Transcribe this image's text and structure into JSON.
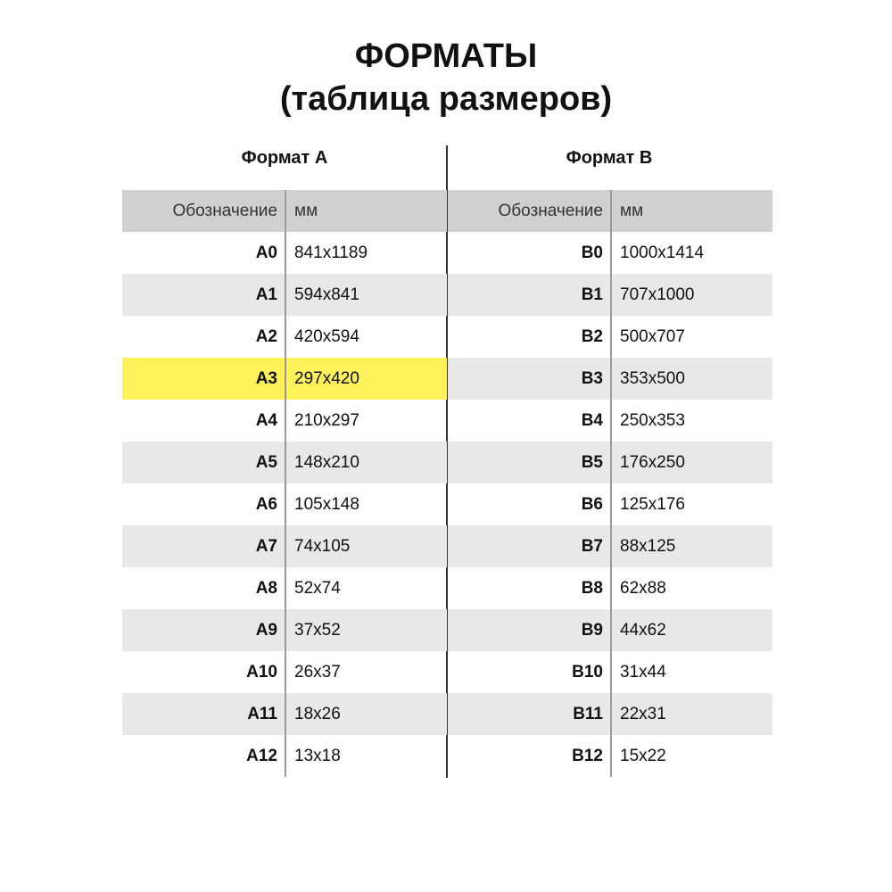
{
  "title": "ФОРМАТЫ",
  "subtitle": "(таблица размеров)",
  "tables": [
    {
      "heading": "Формат А",
      "col1": "Обозначение",
      "col2": "мм",
      "highlight": "A3",
      "highlight_color": "#fef15a",
      "rows": [
        [
          "A0",
          "841x1189"
        ],
        [
          "A1",
          "594x841"
        ],
        [
          "A2",
          "420x594"
        ],
        [
          "A3",
          "297x420"
        ],
        [
          "A4",
          "210x297"
        ],
        [
          "A5",
          "148x210"
        ],
        [
          "A6",
          "105x148"
        ],
        [
          "A7",
          "74x105"
        ],
        [
          "A8",
          "52x74"
        ],
        [
          "A9",
          "37x52"
        ],
        [
          "A10",
          "26x37"
        ],
        [
          "A11",
          "18x26"
        ],
        [
          "A12",
          "13x18"
        ]
      ]
    },
    {
      "heading": "Формат В",
      "col1": "Обозначение",
      "col2": "мм",
      "rows": [
        [
          "B0",
          "1000x1414"
        ],
        [
          "B1",
          "707x1000"
        ],
        [
          "B2",
          "500x707"
        ],
        [
          "B3",
          "353x500"
        ],
        [
          "B4",
          "250x353"
        ],
        [
          "B5",
          "176x250"
        ],
        [
          "B6",
          "125x176"
        ],
        [
          "B7",
          "88x125"
        ],
        [
          "B8",
          "62x88"
        ],
        [
          "B9",
          "44x62"
        ],
        [
          "B10",
          "31x44"
        ],
        [
          "B11",
          "22x31"
        ],
        [
          "B12",
          "15x22"
        ]
      ]
    }
  ]
}
